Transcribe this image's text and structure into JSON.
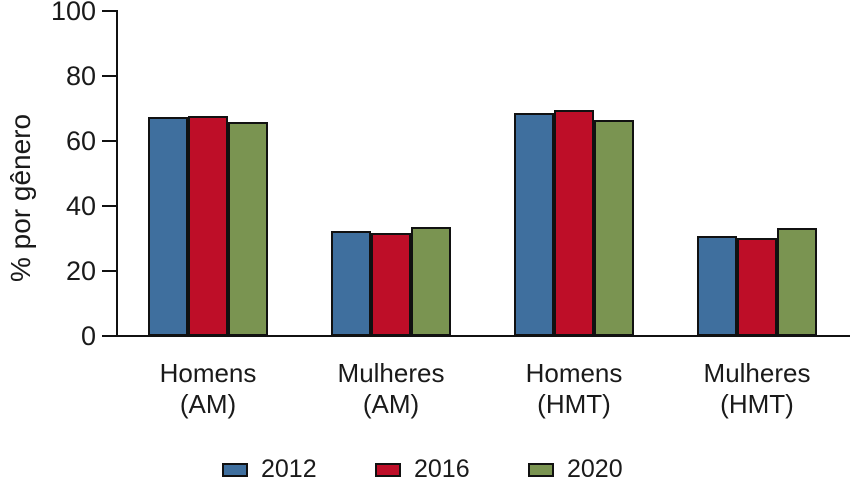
{
  "chart_data": {
    "type": "bar",
    "title": "",
    "xlabel": "",
    "ylabel": "% por gênero",
    "ylim": [
      0,
      100
    ],
    "yticks": [
      0,
      20,
      40,
      60,
      80,
      100
    ],
    "grid": false,
    "legend_position": "bottom",
    "background": "#ffffff",
    "axis_color": "#111111",
    "bar_border_color": "#111111",
    "text_color": "#1a1a1a",
    "categories": [
      "Homens (AM)",
      "Mulheres (AM)",
      "Homens (HMT)",
      "Mulheres (HMT)"
    ],
    "series": [
      {
        "name": "2012",
        "color": "#3F6F9E",
        "values": [
          67.4,
          32.4,
          68.6,
          30.8
        ]
      },
      {
        "name": "2016",
        "color": "#BE0E28",
        "values": [
          67.8,
          31.8,
          69.4,
          30.2
        ]
      },
      {
        "name": "2020",
        "color": "#7A9451",
        "values": [
          65.8,
          33.6,
          66.4,
          33.2
        ]
      }
    ]
  }
}
